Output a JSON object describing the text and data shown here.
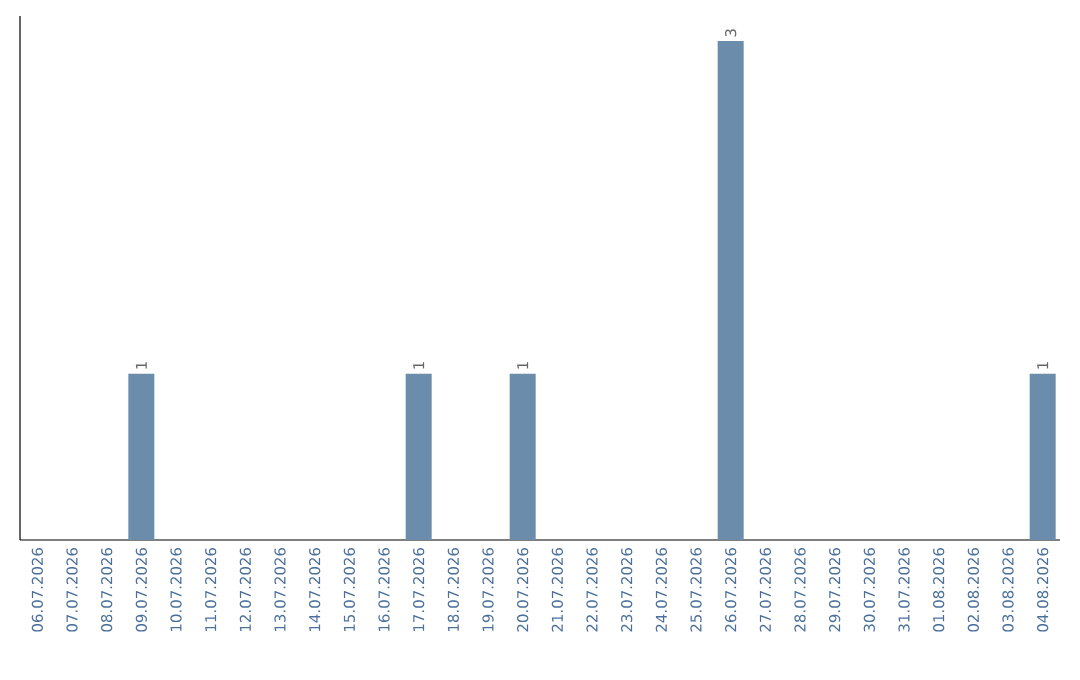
{
  "chart_data": {
    "type": "bar",
    "categories": [
      "06.07.2026",
      "07.07.2026",
      "08.07.2026",
      "09.07.2026",
      "10.07.2026",
      "11.07.2026",
      "12.07.2026",
      "13.07.2026",
      "14.07.2026",
      "15.07.2026",
      "16.07.2026",
      "17.07.2026",
      "18.07.2026",
      "19.07.2026",
      "20.07.2026",
      "21.07.2026",
      "22.07.2026",
      "23.07.2026",
      "24.07.2026",
      "25.07.2026",
      "26.07.2026",
      "27.07.2026",
      "28.07.2026",
      "29.07.2026",
      "30.07.2026",
      "31.07.2026",
      "01.08.2026",
      "02.08.2026",
      "03.08.2026",
      "04.08.2026"
    ],
    "values": [
      0,
      0,
      0,
      1,
      0,
      0,
      0,
      0,
      0,
      0,
      0,
      1,
      0,
      0,
      1,
      0,
      0,
      0,
      0,
      0,
      3,
      0,
      0,
      0,
      0,
      0,
      0,
      0,
      0,
      1
    ],
    "value_labels": [
      null,
      null,
      null,
      "1",
      null,
      null,
      null,
      null,
      null,
      null,
      null,
      "1",
      null,
      null,
      "1",
      null,
      null,
      null,
      null,
      null,
      "3",
      null,
      null,
      null,
      null,
      null,
      null,
      null,
      null,
      "1"
    ],
    "color": "#6b8cab",
    "tick_labels": "x"
  }
}
